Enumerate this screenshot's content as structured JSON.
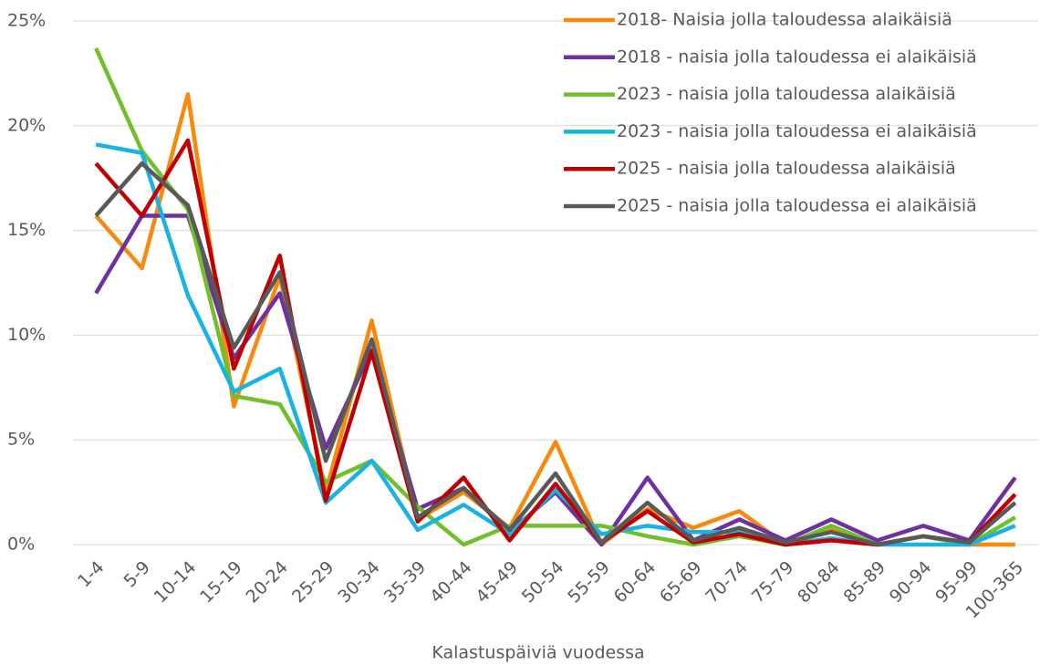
{
  "chart_data": {
    "type": "line",
    "x_label": "Kalastuspäiviä vuodessa",
    "categories": [
      "1-4",
      "5-9",
      "10-14",
      "15-19",
      "20-24",
      "25-29",
      "30-34",
      "35-39",
      "40-44",
      "45-49",
      "50-54",
      "55-59",
      "60-64",
      "65-69",
      "70-74",
      "75-79",
      "80-84",
      "85-89",
      "90-94",
      "95-99",
      "100-365"
    ],
    "series": [
      {
        "name": "2018- Naisia jolla taloudessa alaikäisiä",
        "color": "#f7890d",
        "values": [
          15.7,
          13.2,
          21.5,
          6.6,
          12.8,
          2.5,
          10.7,
          1.2,
          2.5,
          0.8,
          4.9,
          0.0,
          1.7,
          0.8,
          1.6,
          0.0,
          0.8,
          0.0,
          0.4,
          0.0,
          0.0
        ]
      },
      {
        "name": "2018 - naisia jolla taloudessa ei alaikäisiä",
        "color": "#7030a0",
        "values": [
          12.0,
          15.7,
          15.7,
          8.9,
          12.0,
          4.6,
          9.3,
          1.7,
          2.7,
          0.6,
          2.5,
          0.0,
          3.2,
          0.2,
          1.2,
          0.2,
          1.2,
          0.2,
          0.9,
          0.2,
          3.2
        ]
      },
      {
        "name": "2023 - naisia jolla taloudessa alaikäisiä",
        "color": "#72bf2c",
        "values": [
          23.7,
          18.8,
          16.0,
          7.1,
          6.7,
          3.0,
          4.0,
          1.8,
          0.0,
          0.9,
          0.9,
          0.9,
          0.4,
          0.0,
          0.4,
          0.0,
          0.9,
          0.0,
          0.4,
          0.0,
          1.3
        ]
      },
      {
        "name": "2023 - naisia jolla taloudessa ei alaikäisiä",
        "color": "#1ab2e2",
        "values": [
          19.1,
          18.7,
          11.9,
          7.3,
          8.4,
          2.0,
          4.0,
          0.7,
          1.9,
          0.5,
          2.6,
          0.5,
          0.9,
          0.6,
          0.6,
          0.0,
          0.3,
          0.0,
          0.0,
          0.0,
          0.9
        ]
      },
      {
        "name": "2025 - naisia jolla taloudessa alaikäisiä",
        "color": "#c00000",
        "values": [
          18.2,
          15.7,
          19.3,
          8.4,
          13.8,
          2.1,
          9.2,
          1.1,
          3.2,
          0.2,
          2.9,
          0.1,
          1.6,
          0.1,
          0.5,
          0.0,
          0.2,
          0.0,
          0.4,
          0.1,
          2.4
        ]
      },
      {
        "name": "2025 - naisia jolla taloudessa ei alaikäisiä",
        "color": "#595959",
        "values": [
          15.7,
          18.2,
          16.2,
          9.4,
          13.0,
          4.0,
          9.8,
          1.3,
          2.7,
          0.7,
          3.4,
          0.1,
          2.0,
          0.2,
          0.8,
          0.1,
          0.6,
          0.0,
          0.4,
          0.1,
          2.0
        ]
      }
    ],
    "ylim": [
      0,
      25
    ],
    "yticks": [
      {
        "value": 0,
        "label": "0%"
      },
      {
        "value": 5,
        "label": "5%"
      },
      {
        "value": 10,
        "label": "10%"
      },
      {
        "value": 15,
        "label": "15%"
      },
      {
        "value": 20,
        "label": "20%"
      },
      {
        "value": 25,
        "label": "25%"
      }
    ],
    "grid": true,
    "legend": "upper right"
  }
}
